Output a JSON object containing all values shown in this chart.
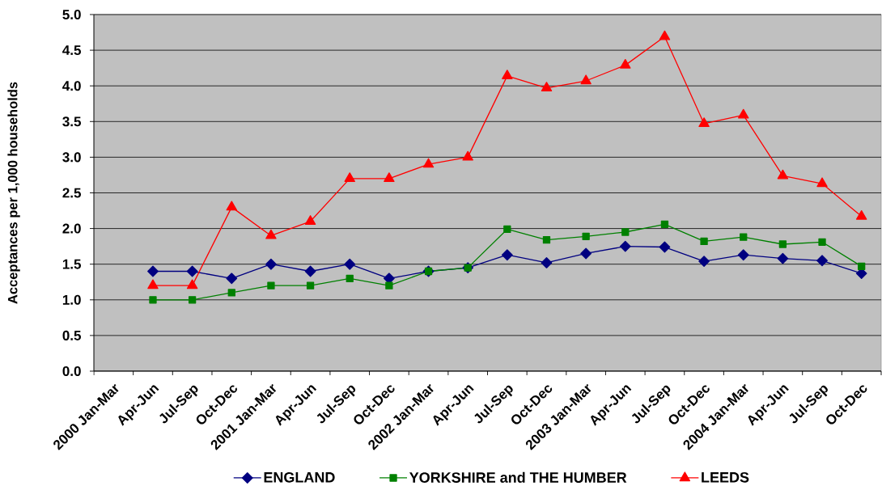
{
  "chart_data": {
    "type": "line",
    "ylabel": "Acceptances per 1,000 households",
    "categories": [
      "2000 Jan-Mar",
      "Apr-Jun",
      "Jul-Sep",
      "Oct-Dec",
      "2001 Jan-Mar",
      "Apr-Jun",
      "Jul-Sep",
      "Oct-Dec",
      "2002 Jan-Mar",
      "Apr-Jun",
      "Jul-Sep",
      "Oct-Dec",
      "2003 Jan-Mar",
      "Apr-Jun",
      "Jul-Sep",
      "Oct-Dec",
      "2004 Jan-Mar",
      "Apr-Jun",
      "Jul-Sep",
      "Oct-Dec"
    ],
    "series": [
      {
        "name": "ENGLAND",
        "color": "#000080",
        "marker": "diamond",
        "values": [
          null,
          1.4,
          1.4,
          1.3,
          1.5,
          1.4,
          1.5,
          1.3,
          1.4,
          1.45,
          1.63,
          1.52,
          1.65,
          1.75,
          1.74,
          1.54,
          1.63,
          1.58,
          1.55,
          1.37
        ]
      },
      {
        "name": "YORKSHIRE and THE HUMBER",
        "color": "#008000",
        "marker": "square",
        "values": [
          null,
          1.0,
          1.0,
          1.1,
          1.2,
          1.2,
          1.3,
          1.2,
          1.4,
          1.45,
          1.99,
          1.84,
          1.89,
          1.95,
          2.06,
          1.82,
          1.88,
          1.78,
          1.81,
          1.47
        ]
      },
      {
        "name": "LEEDS",
        "color": "#ff0000",
        "marker": "triangle",
        "values": [
          null,
          1.2,
          1.2,
          2.3,
          1.9,
          2.1,
          2.7,
          2.7,
          2.9,
          3.0,
          4.14,
          3.97,
          4.07,
          4.29,
          4.69,
          3.47,
          3.59,
          2.74,
          2.63,
          2.17
        ]
      }
    ],
    "ylim": [
      0,
      5
    ],
    "yticks": [
      {
        "value": 0,
        "label": "0.0"
      },
      {
        "value": 0.5,
        "label": "0.5"
      },
      {
        "value": 1,
        "label": "1.0"
      },
      {
        "value": 1.5,
        "label": "1.5"
      },
      {
        "value": 2,
        "label": "2.0"
      },
      {
        "value": 2.5,
        "label": "2.5"
      },
      {
        "value": 3,
        "label": "3.0"
      },
      {
        "value": 3.5,
        "label": "3.5"
      },
      {
        "value": 4,
        "label": "4.0"
      },
      {
        "value": 4.5,
        "label": "4.5"
      },
      {
        "value": 5,
        "label": "5.0"
      }
    ],
    "grid": "y",
    "legend": "bottom"
  }
}
